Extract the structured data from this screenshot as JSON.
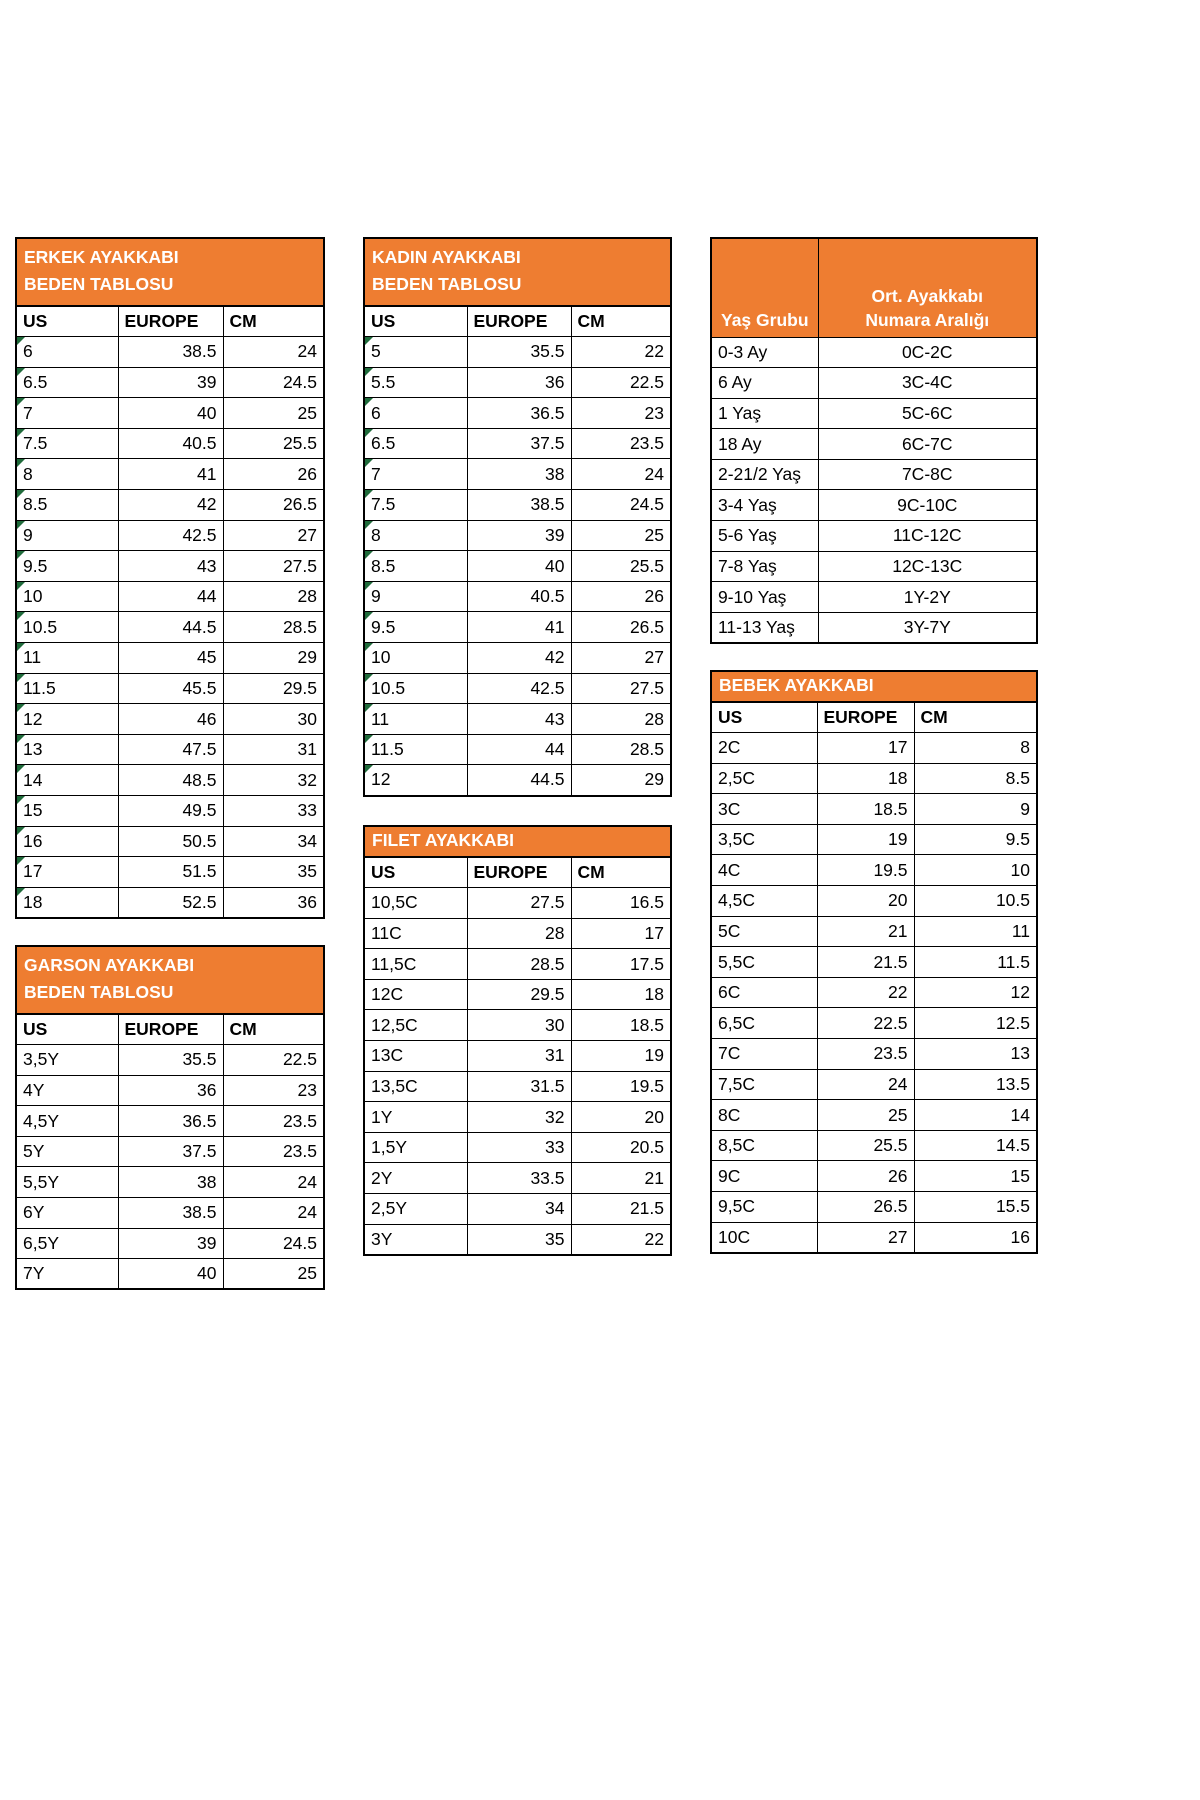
{
  "colors": {
    "header_orange": "#EE7D31",
    "triangle_green": "#1F6B3B",
    "border_black": "#000000",
    "page_bg": "#FFFFFF"
  },
  "tables": {
    "erkek": {
      "title_line1": "ERKEK AYAKKABI",
      "title_line2": "BEDEN TABLOSU",
      "columns": [
        "US",
        "EUROPE",
        "CM"
      ],
      "rows": [
        [
          "6",
          "38.5",
          "24"
        ],
        [
          "6.5",
          "39",
          "24.5"
        ],
        [
          "7",
          "40",
          "25"
        ],
        [
          "7.5",
          "40.5",
          "25.5"
        ],
        [
          "8",
          "41",
          "26"
        ],
        [
          "8.5",
          "42",
          "26.5"
        ],
        [
          "9",
          "42.5",
          "27"
        ],
        [
          "9.5",
          "43",
          "27.5"
        ],
        [
          "10",
          "44",
          "28"
        ],
        [
          "10.5",
          "44.5",
          "28.5"
        ],
        [
          "11",
          "45",
          "29"
        ],
        [
          "11.5",
          "45.5",
          "29.5"
        ],
        [
          "12",
          "46",
          "30"
        ],
        [
          "13",
          "47.5",
          "31"
        ],
        [
          "14",
          "48.5",
          "32"
        ],
        [
          "15",
          "49.5",
          "33"
        ],
        [
          "16",
          "50.5",
          "34"
        ],
        [
          "17",
          "51.5",
          "35"
        ],
        [
          "18",
          "52.5",
          "36"
        ]
      ]
    },
    "kadin": {
      "title_line1": "KADIN AYAKKABI",
      "title_line2": "BEDEN TABLOSU",
      "columns": [
        "US",
        "EUROPE",
        "CM"
      ],
      "rows": [
        [
          "5",
          "35.5",
          "22"
        ],
        [
          "5.5",
          "36",
          "22.5"
        ],
        [
          "6",
          "36.5",
          "23"
        ],
        [
          "6.5",
          "37.5",
          "23.5"
        ],
        [
          "7",
          "38",
          "24"
        ],
        [
          "7.5",
          "38.5",
          "24.5"
        ],
        [
          "8",
          "39",
          "25"
        ],
        [
          "8.5",
          "40",
          "25.5"
        ],
        [
          "9",
          "40.5",
          "26"
        ],
        [
          "9.5",
          "41",
          "26.5"
        ],
        [
          "10",
          "42",
          "27"
        ],
        [
          "10.5",
          "42.5",
          "27.5"
        ],
        [
          "11",
          "43",
          "28"
        ],
        [
          "11.5",
          "44",
          "28.5"
        ],
        [
          "12",
          "44.5",
          "29"
        ]
      ]
    },
    "yas": {
      "col1_header": "Yaş Grubu",
      "col2_header_line1": "Ort. Ayakkabı",
      "col2_header_line2": "Numara Aralığı",
      "rows": [
        [
          "0-3 Ay",
          "0C-2C"
        ],
        [
          "6 Ay",
          "3C-4C"
        ],
        [
          "1 Yaş",
          "5C-6C"
        ],
        [
          "18 Ay",
          "6C-7C"
        ],
        [
          "2-21/2 Yaş",
          "7C-8C"
        ],
        [
          "3-4 Yaş",
          "9C-10C"
        ],
        [
          "5-6 Yaş",
          "11C-12C"
        ],
        [
          "7-8 Yaş",
          "12C-13C"
        ],
        [
          "9-10 Yaş",
          "1Y-2Y"
        ],
        [
          "11-13 Yaş",
          "3Y-7Y"
        ]
      ]
    },
    "bebek": {
      "title_line1": "BEBEK AYAKKABI",
      "columns": [
        "US",
        "EUROPE",
        "CM"
      ],
      "rows": [
        [
          "2C",
          "17",
          "8"
        ],
        [
          "2,5C",
          "18",
          "8.5"
        ],
        [
          "3C",
          "18.5",
          "9"
        ],
        [
          "3,5C",
          "19",
          "9.5"
        ],
        [
          "4C",
          "19.5",
          "10"
        ],
        [
          "4,5C",
          "20",
          "10.5"
        ],
        [
          "5C",
          "21",
          "11"
        ],
        [
          "5,5C",
          "21.5",
          "11.5"
        ],
        [
          "6C",
          "22",
          "12"
        ],
        [
          "6,5C",
          "22.5",
          "12.5"
        ],
        [
          "7C",
          "23.5",
          "13"
        ],
        [
          "7,5C",
          "24",
          "13.5"
        ],
        [
          "8C",
          "25",
          "14"
        ],
        [
          "8,5C",
          "25.5",
          "14.5"
        ],
        [
          "9C",
          "26",
          "15"
        ],
        [
          "9,5C",
          "26.5",
          "15.5"
        ],
        [
          "10C",
          "27",
          "16"
        ]
      ]
    },
    "garson": {
      "title_line1": "GARSON AYAKKABI",
      "title_line2": "BEDEN TABLOSU",
      "columns": [
        "US",
        "EUROPE",
        "CM"
      ],
      "rows": [
        [
          "3,5Y",
          "35.5",
          "22.5"
        ],
        [
          "4Y",
          "36",
          "23"
        ],
        [
          "4,5Y",
          "36.5",
          "23.5"
        ],
        [
          "5Y",
          "37.5",
          "23.5"
        ],
        [
          "5,5Y",
          "38",
          "24"
        ],
        [
          "6Y",
          "38.5",
          "24"
        ],
        [
          "6,5Y",
          "39",
          "24.5"
        ],
        [
          "7Y",
          "40",
          "25"
        ]
      ]
    },
    "filet": {
      "title_line1": "FILET AYAKKABI",
      "columns": [
        "US",
        "EUROPE",
        "CM"
      ],
      "rows": [
        [
          "10,5C",
          "27.5",
          "16.5"
        ],
        [
          "11C",
          "28",
          "17"
        ],
        [
          "11,5C",
          "28.5",
          "17.5"
        ],
        [
          "12C",
          "29.5",
          "18"
        ],
        [
          "12,5C",
          "30",
          "18.5"
        ],
        [
          "13C",
          "31",
          "19"
        ],
        [
          "13,5C",
          "31.5",
          "19.5"
        ],
        [
          "1Y",
          "32",
          "20"
        ],
        [
          "1,5Y",
          "33",
          "20.5"
        ],
        [
          "2Y",
          "33.5",
          "21"
        ],
        [
          "2,5Y",
          "34",
          "21.5"
        ],
        [
          "3Y",
          "35",
          "22"
        ]
      ]
    }
  }
}
